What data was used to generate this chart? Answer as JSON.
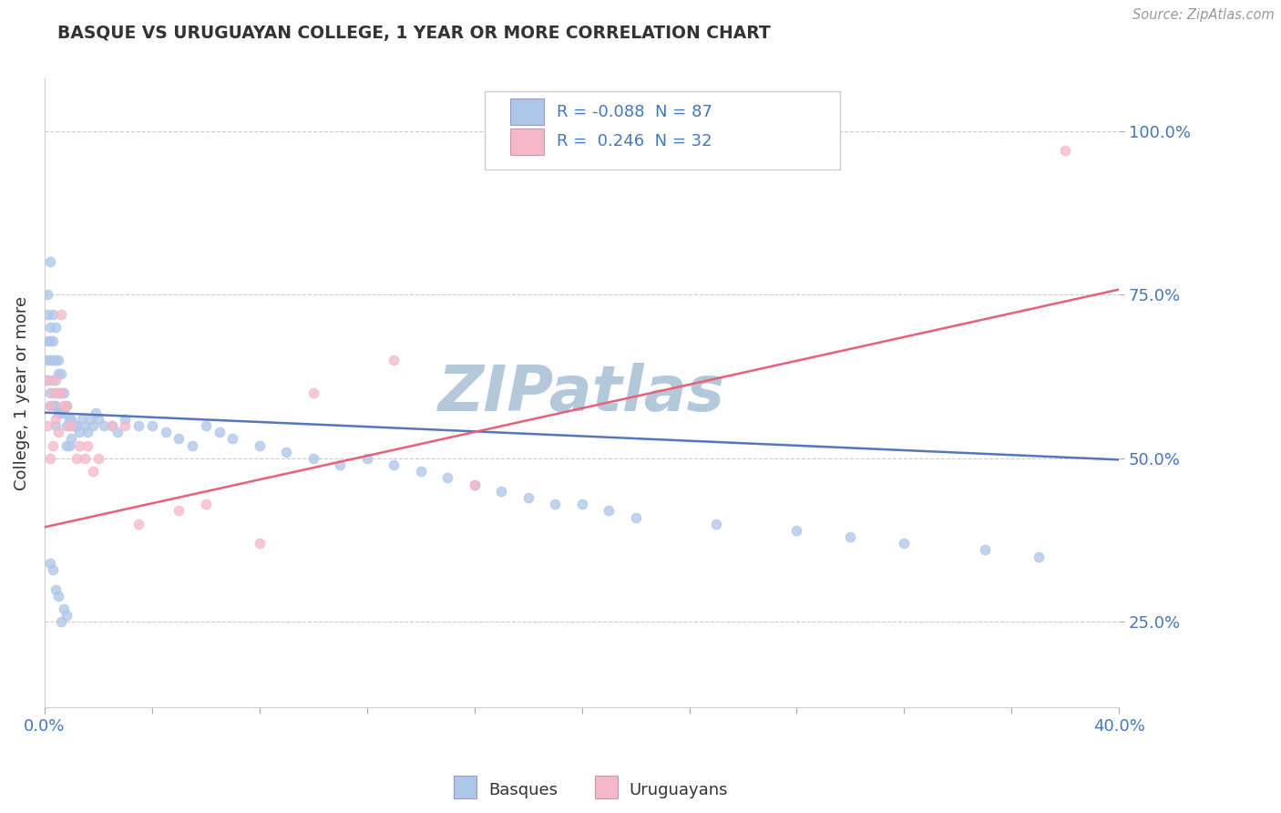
{
  "title": "BASQUE VS URUGUAYAN COLLEGE, 1 YEAR OR MORE CORRELATION CHART",
  "source_text": "Source: ZipAtlas.com",
  "ylabel": "College, 1 year or more",
  "xlim": [
    0.0,
    0.4
  ],
  "ylim": [
    0.12,
    1.08
  ],
  "ytick_positions": [
    0.25,
    0.5,
    0.75,
    1.0
  ],
  "ytick_labels": [
    "25.0%",
    "50.0%",
    "75.0%",
    "100.0%"
  ],
  "basque_color": "#aec6e8",
  "uruguayan_color": "#f4b8c8",
  "basque_line_color": "#5577bb",
  "uruguayan_line_color": "#e8607a",
  "basque_R": -0.088,
  "basque_N": 87,
  "uruguayan_R": 0.246,
  "uruguayan_N": 32,
  "watermark": "ZIPatlas",
  "watermark_color_r": 180,
  "watermark_color_g": 200,
  "watermark_color_b": 220,
  "title_color": "#333333",
  "axis_color": "#4477bb",
  "basque_x": [
    0.001,
    0.001,
    0.001,
    0.001,
    0.001,
    0.002,
    0.002,
    0.002,
    0.002,
    0.002,
    0.002,
    0.003,
    0.003,
    0.003,
    0.003,
    0.003,
    0.004,
    0.004,
    0.004,
    0.004,
    0.004,
    0.005,
    0.005,
    0.005,
    0.005,
    0.006,
    0.006,
    0.006,
    0.007,
    0.007,
    0.008,
    0.008,
    0.008,
    0.009,
    0.009,
    0.01,
    0.01,
    0.011,
    0.012,
    0.013,
    0.014,
    0.015,
    0.016,
    0.017,
    0.018,
    0.019,
    0.02,
    0.022,
    0.025,
    0.027,
    0.03,
    0.035,
    0.04,
    0.045,
    0.05,
    0.055,
    0.06,
    0.065,
    0.07,
    0.08,
    0.09,
    0.1,
    0.11,
    0.12,
    0.13,
    0.14,
    0.15,
    0.16,
    0.17,
    0.18,
    0.19,
    0.2,
    0.21,
    0.22,
    0.25,
    0.28,
    0.3,
    0.32,
    0.35,
    0.37,
    0.002,
    0.003,
    0.004,
    0.005,
    0.006,
    0.007,
    0.008
  ],
  "basque_y": [
    0.72,
    0.68,
    0.65,
    0.62,
    0.75,
    0.8,
    0.7,
    0.68,
    0.65,
    0.6,
    0.58,
    0.72,
    0.68,
    0.65,
    0.62,
    0.58,
    0.7,
    0.65,
    0.6,
    0.58,
    0.55,
    0.65,
    0.63,
    0.6,
    0.57,
    0.63,
    0.6,
    0.57,
    0.6,
    0.57,
    0.58,
    0.55,
    0.52,
    0.56,
    0.52,
    0.56,
    0.53,
    0.55,
    0.55,
    0.54,
    0.56,
    0.55,
    0.54,
    0.56,
    0.55,
    0.57,
    0.56,
    0.55,
    0.55,
    0.54,
    0.56,
    0.55,
    0.55,
    0.54,
    0.53,
    0.52,
    0.55,
    0.54,
    0.53,
    0.52,
    0.51,
    0.5,
    0.49,
    0.5,
    0.49,
    0.48,
    0.47,
    0.46,
    0.45,
    0.44,
    0.43,
    0.43,
    0.42,
    0.41,
    0.4,
    0.39,
    0.38,
    0.37,
    0.36,
    0.35,
    0.34,
    0.33,
    0.3,
    0.29,
    0.25,
    0.27,
    0.26
  ],
  "uruguayan_x": [
    0.001,
    0.001,
    0.002,
    0.002,
    0.003,
    0.003,
    0.004,
    0.004,
    0.005,
    0.005,
    0.006,
    0.006,
    0.007,
    0.008,
    0.009,
    0.01,
    0.012,
    0.013,
    0.015,
    0.016,
    0.018,
    0.02,
    0.025,
    0.03,
    0.035,
    0.05,
    0.06,
    0.08,
    0.1,
    0.13,
    0.16,
    0.38
  ],
  "uruguayan_y": [
    0.62,
    0.55,
    0.58,
    0.5,
    0.6,
    0.52,
    0.62,
    0.56,
    0.6,
    0.54,
    0.72,
    0.6,
    0.58,
    0.58,
    0.55,
    0.55,
    0.5,
    0.52,
    0.5,
    0.52,
    0.48,
    0.5,
    0.55,
    0.55,
    0.4,
    0.42,
    0.43,
    0.37,
    0.6,
    0.65,
    0.46,
    0.97
  ],
  "basque_line_x0": 0.0,
  "basque_line_y0": 0.57,
  "basque_line_x1": 0.4,
  "basque_line_y1": 0.498,
  "uruguayan_line_x0": 0.0,
  "uruguayan_line_y0": 0.395,
  "uruguayan_line_x1": 0.4,
  "uruguayan_line_y1": 0.758
}
